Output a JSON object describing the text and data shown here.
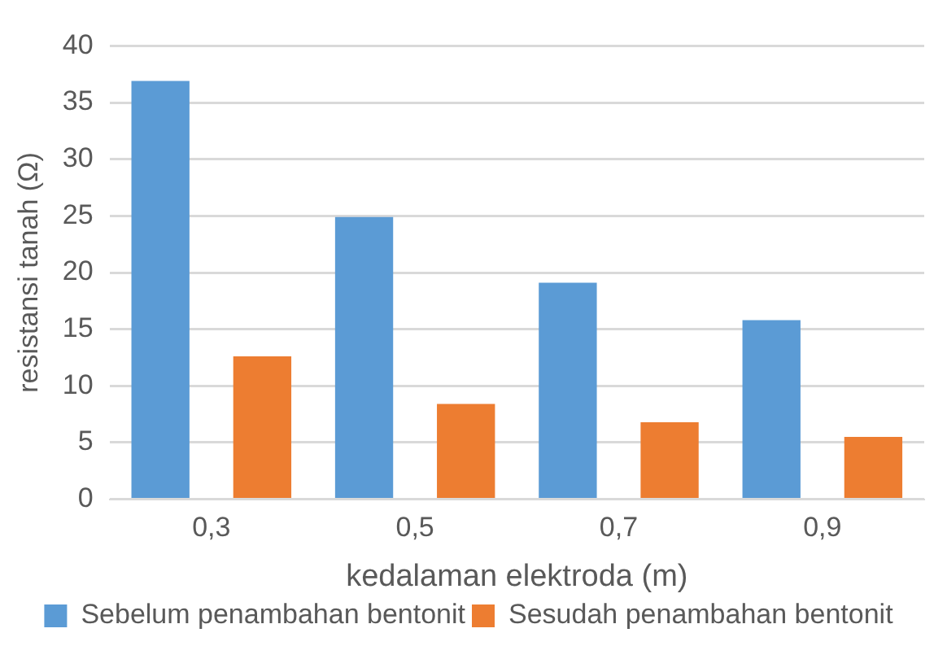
{
  "chart_data": {
    "type": "bar",
    "xlabel": "kedalaman elektroda (m)",
    "ylabel": "resistansi tanah (Ω)",
    "categories": [
      "0,3",
      "0,5",
      "0,7",
      "0,9"
    ],
    "series": [
      {
        "name": "Sebelum penambahan bentonit",
        "color": "#5b9bd5",
        "values": [
          36.9,
          24.9,
          19.1,
          15.8
        ]
      },
      {
        "name": "Sesudah penambahan bentonit",
        "color": "#ed7d31",
        "values": [
          12.6,
          8.4,
          6.8,
          5.5
        ]
      }
    ],
    "ylim": [
      0,
      40
    ],
    "yticks": [
      0,
      5,
      10,
      15,
      20,
      25,
      30,
      35,
      40
    ],
    "grid": "y",
    "legend": "bottom"
  }
}
